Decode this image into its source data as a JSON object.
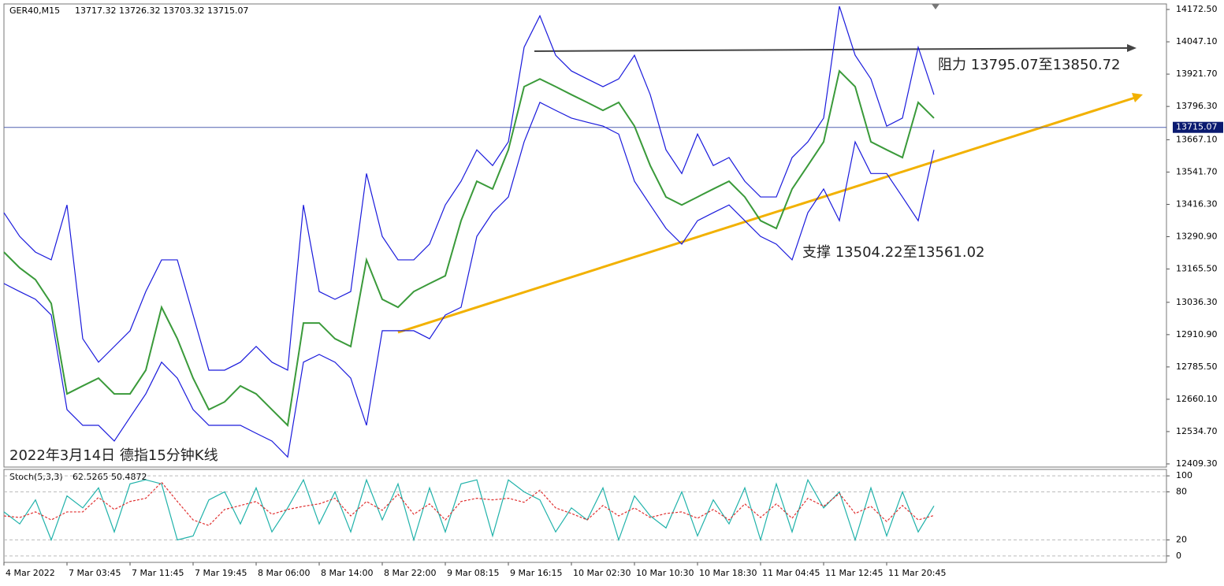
{
  "chart_data": [
    {
      "type": "line",
      "title": "GER40,M15",
      "subtitle": "13717.32 13726.32 13703.32 13715.07",
      "annotations": [
        "阻力 13795.07至13850.72",
        "支撑 13504.22至13561.02",
        "2022年3月14日 德指15分钟K线"
      ],
      "ylim": [
        12397,
        14194
      ],
      "yticks": [
        {
          "value": 14172.5,
          "label": "14172.50"
        },
        {
          "value": 14047.1,
          "label": "14047.10"
        },
        {
          "value": 13921.7,
          "label": "13921.70"
        },
        {
          "value": 13796.3,
          "label": "13796.30"
        },
        {
          "value": 13667.1,
          "label": "13667.10"
        },
        {
          "value": 13541.7,
          "label": "13541.70"
        },
        {
          "value": 13416.3,
          "label": "13416.30"
        },
        {
          "value": 13290.9,
          "label": "13290.90"
        },
        {
          "value": 13165.5,
          "label": "13165.50"
        },
        {
          "value": 13036.3,
          "label": "13036.30"
        },
        {
          "value": 12910.9,
          "label": "12910.90"
        },
        {
          "value": 12785.5,
          "label": "12785.50"
        },
        {
          "value": 12660.1,
          "label": "12660.10"
        },
        {
          "value": 12534.7,
          "label": "12534.70"
        },
        {
          "value": 12409.3,
          "label": "12409.30"
        }
      ],
      "last_price": {
        "value": 13715.07,
        "label": "13715.07"
      },
      "series": [
        {
          "color": "#3a9a3a",
          "values": [
            13231,
            13170,
            13124,
            13032,
            12681,
            12712,
            12742,
            12681,
            12681,
            12773,
            13017,
            12895,
            12742,
            12620,
            12650,
            12712,
            12681,
            12620,
            12559,
            12956,
            12956,
            12895,
            12865,
            13201,
            13048,
            13017,
            13078,
            13109,
            13139,
            13353,
            13506,
            13476,
            13628,
            13873,
            13903,
            13873,
            13842,
            13812,
            13781,
            13812,
            13720,
            13567,
            13445,
            13414,
            13445,
            13476,
            13506,
            13445,
            13353,
            13323,
            13476,
            13567,
            13659,
            13934,
            13873,
            13659,
            13628,
            13598,
            13812,
            13751
          ]
        },
        {
          "color": "#1a1adc",
          "values": [
            13384,
            13292,
            13231,
            13201,
            13414,
            12895,
            12804,
            12865,
            12926,
            13078,
            13201,
            13201,
            12987,
            12773,
            12773,
            12804,
            12865,
            12804,
            12773,
            13414,
            13078,
            13048,
            13078,
            13536,
            13292,
            13201,
            13201,
            13262,
            13414,
            13506,
            13628,
            13567,
            13659,
            14026,
            14148,
            13995,
            13934,
            13903,
            13873,
            13903,
            13995,
            13842,
            13628,
            13536,
            13689,
            13567,
            13598,
            13506,
            13445,
            13445,
            13598,
            13659,
            13751,
            14185,
            13995,
            13903,
            13720,
            13751,
            14026,
            13842
          ]
        },
        {
          "color": "#1a1adc",
          "values": [
            13109,
            13078,
            13048,
            12987,
            12620,
            12559,
            12559,
            12498,
            12590,
            12681,
            12804,
            12742,
            12620,
            12559,
            12559,
            12559,
            12528,
            12498,
            12436,
            12804,
            12834,
            12804,
            12742,
            12559,
            12926,
            12926,
            12926,
            12895,
            12987,
            13017,
            13292,
            13384,
            13445,
            13659,
            13812,
            13781,
            13751,
            13735,
            13720,
            13689,
            13506,
            13414,
            13323,
            13262,
            13353,
            13384,
            13414,
            13353,
            13292,
            13262,
            13201,
            13384,
            13476,
            13353,
            13659,
            13536,
            13536,
            13445,
            13353,
            13628
          ]
        }
      ]
    },
    {
      "type": "line",
      "title": "Stoch(5,3,3)",
      "subtitle": "62.5265 50.4872",
      "categories": [
        "4 Mar 2022",
        null,
        null,
        null,
        "7 Mar 03:45",
        null,
        null,
        null,
        "7 Mar 11:45",
        null,
        null,
        null,
        "7 Mar 19:45",
        null,
        null,
        null,
        "8 Mar 06:00",
        null,
        null,
        null,
        "8 Mar 14:00",
        null,
        null,
        null,
        "8 Mar 22:00",
        null,
        null,
        null,
        "9 Mar 08:15",
        null,
        null,
        null,
        "9 Mar 16:15",
        null,
        null,
        null,
        "10 Mar 02:30",
        null,
        null,
        null,
        "10 Mar 10:30",
        null,
        null,
        null,
        "10 Mar 18:30",
        null,
        null,
        null,
        "11 Mar 04:45",
        null,
        null,
        null,
        "11 Mar 12:45",
        null,
        null,
        null,
        "11 Mar 20:45",
        null,
        null,
        null
      ],
      "ylim": [
        -8,
        108
      ],
      "yticks": [
        0,
        20,
        80,
        100
      ],
      "series": [
        {
          "color": "#20b2aa",
          "values": [
            55,
            40,
            70,
            20,
            75,
            60,
            85,
            30,
            90,
            95,
            90,
            20,
            25,
            70,
            80,
            40,
            85,
            30,
            60,
            95,
            40,
            80,
            30,
            95,
            45,
            90,
            20,
            85,
            30,
            90,
            95,
            25,
            95,
            80,
            70,
            30,
            60,
            45,
            85,
            20,
            75,
            50,
            35,
            80,
            25,
            70,
            40,
            85,
            20,
            90,
            30,
            95,
            60,
            80,
            20,
            85,
            25,
            80,
            30,
            62.5
          ]
        },
        {
          "color": "#e03030",
          "values": [
            50,
            48,
            55,
            45,
            55,
            55,
            73,
            58,
            68,
            72,
            92,
            68,
            45,
            38,
            58,
            63,
            68,
            52,
            58,
            62,
            65,
            72,
            50,
            68,
            57,
            77,
            52,
            65,
            45,
            68,
            72,
            70,
            72,
            67,
            82,
            60,
            53,
            45,
            63,
            50,
            60,
            48,
            53,
            55,
            47,
            58,
            45,
            65,
            48,
            65,
            47,
            72,
            62,
            78,
            53,
            62,
            43,
            63,
            45,
            50.5
          ]
        }
      ]
    }
  ]
}
